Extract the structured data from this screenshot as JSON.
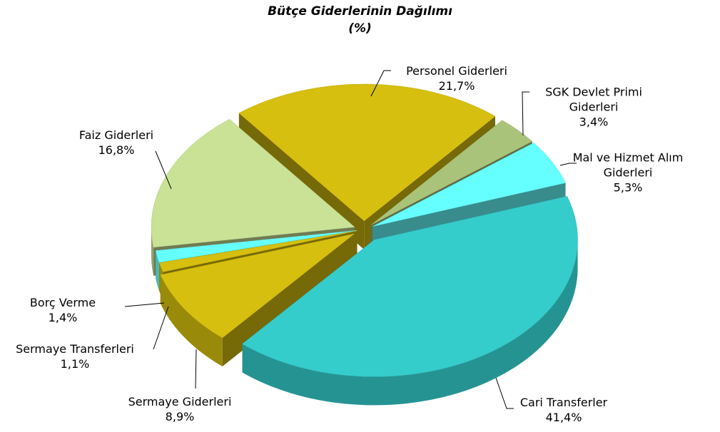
{
  "chart_data": {
    "type": "pie3d",
    "title": "Bütçe Giderlerinin Dağılımı",
    "subtitle": "(%)",
    "categories": [
      "Personel Giderleri",
      "SGK Devlet Primi Giderleri",
      "Mal ve Hizmet Alım Giderleri",
      "Cari Transferler",
      "Sermaye Giderleri",
      "Sermaye Transferleri",
      "Borç Verme",
      "Faiz Giderleri"
    ],
    "values": [
      21.7,
      3.4,
      5.3,
      41.4,
      8.9,
      1.1,
      1.4,
      16.8
    ],
    "value_labels": [
      "21,7%",
      "3,4%",
      "5,3%",
      "41,4%",
      "8,9%",
      "1,1%",
      "1,4%",
      "16,8%"
    ],
    "colors": [
      "#d6bf0e",
      "#a9c47a",
      "#66ffff",
      "#35cccc",
      "#d6bf0e",
      "#d6bf0e",
      "#66ffff",
      "#c9e296"
    ]
  }
}
